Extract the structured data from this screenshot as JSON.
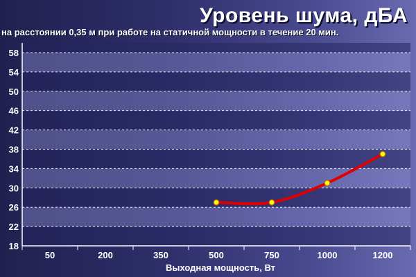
{
  "chart_data": {
    "type": "line",
    "title": "Уровень шума, дБА",
    "subtitle": "на расстоянии 0,35 м при работе на статичной мощности в течение 20 мин.",
    "xlabel": "Выходная мощность, Вт",
    "ylabel": "",
    "categories": [
      "50",
      "200",
      "350",
      "500",
      "750",
      "1000",
      "1200"
    ],
    "yticks": [
      "18",
      "22",
      "26",
      "30",
      "34",
      "38",
      "42",
      "46",
      "50",
      "54",
      "58"
    ],
    "ylim": [
      18,
      60
    ],
    "grid": true,
    "series": [
      {
        "x": [
          "500",
          "750",
          "1000",
          "1200"
        ],
        "values": [
          27,
          27,
          31,
          37
        ]
      }
    ],
    "colors": {
      "line": "#e00000",
      "marker_fill": "#ffff00",
      "marker_stroke": "#c07000",
      "band_light": "#8a8acc",
      "band_dark": "#262660"
    }
  }
}
